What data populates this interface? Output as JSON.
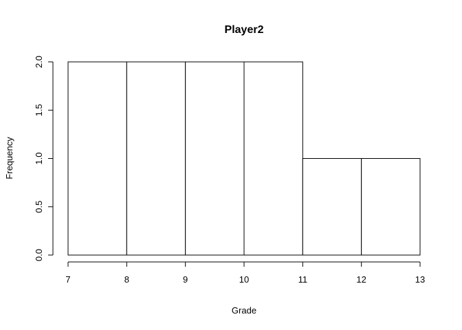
{
  "chart_data": {
    "type": "bar",
    "title": "Player2",
    "xlabel": "Grade",
    "ylabel": "Frequency",
    "bins": [
      {
        "x0": 7,
        "x1": 8,
        "count": 2
      },
      {
        "x0": 8,
        "x1": 9,
        "count": 2
      },
      {
        "x0": 9,
        "x1": 10,
        "count": 2
      },
      {
        "x0": 10,
        "x1": 11,
        "count": 2
      },
      {
        "x0": 11,
        "x1": 12,
        "count": 1
      },
      {
        "x0": 12,
        "x1": 13,
        "count": 1
      }
    ],
    "xlim": [
      7,
      13
    ],
    "ylim": [
      0,
      2
    ],
    "xticks": [
      7,
      8,
      9,
      10,
      11,
      12,
      13
    ],
    "yticks": [
      "0.0",
      "0.5",
      "1.0",
      "1.5",
      "2.0"
    ],
    "colors": {
      "bar_fill": "#ffffff",
      "bar_stroke": "#000000"
    },
    "grid": false
  }
}
